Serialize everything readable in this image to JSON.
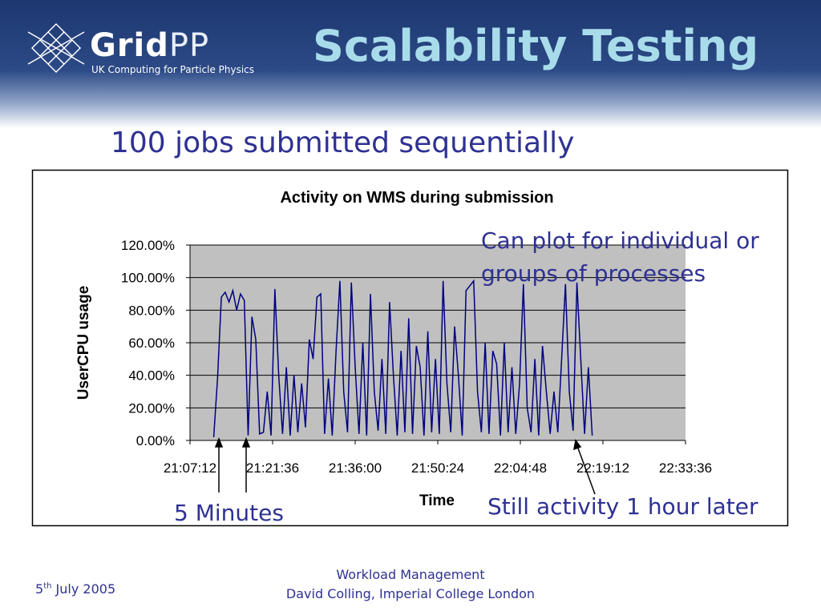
{
  "slide": {
    "logo": {
      "bold": "Grid",
      "light": "PP",
      "tagline": "UK Computing for Particle Physics"
    },
    "title": "Scalability Testing",
    "subtitle": "100 jobs submitted sequentially",
    "footer": {
      "date_day": "5",
      "date_suffix": "th",
      "date_rest": "July 2005",
      "line1": "Workload Management",
      "line2": "David Colling, Imperial College London"
    }
  },
  "chart_data": {
    "type": "line",
    "title": "Activity on WMS during submission",
    "x_label": "Time",
    "y_label": "UserCPU usage",
    "annotations": [
      "Can plot for individual or groups of processes",
      "5 Minutes",
      "Still activity 1 hour later"
    ],
    "color": "#000080",
    "grid": true,
    "xlim": [
      "21:07:12",
      "22:33:36"
    ],
    "xticks": [
      "21:07:12",
      "21:21:36",
      "21:36:00",
      "21:50:24",
      "22:04:48",
      "22:19:12",
      "22:33:36"
    ],
    "ylim": [
      0,
      120
    ],
    "yticks": [
      {
        "value": 0,
        "label": "0.00%"
      },
      {
        "value": 20,
        "label": "20.00%"
      },
      {
        "value": 40,
        "label": "40.00%"
      },
      {
        "value": 60,
        "label": "60.00%"
      },
      {
        "value": 80,
        "label": "80.00%"
      },
      {
        "value": 100,
        "label": "100.00%"
      },
      {
        "value": 120,
        "label": "120.00%"
      }
    ],
    "x": [
      "21:11:20",
      "21:12:00",
      "21:12:40",
      "21:13:20",
      "21:14:00",
      "21:14:40",
      "21:15:20",
      "21:16:00",
      "21:16:40",
      "21:17:20",
      "21:18:00",
      "21:18:40",
      "21:19:20",
      "21:20:00",
      "21:20:40",
      "21:21:20",
      "21:22:00",
      "21:22:40",
      "21:23:20",
      "21:24:00",
      "21:24:40",
      "21:25:20",
      "21:26:00",
      "21:26:40",
      "21:27:20",
      "21:28:00",
      "21:28:40",
      "21:29:20",
      "21:30:00",
      "21:30:40",
      "21:31:20",
      "21:32:00",
      "21:32:40",
      "21:33:20",
      "21:34:00",
      "21:34:40",
      "21:35:20",
      "21:36:00",
      "21:36:40",
      "21:37:20",
      "21:38:00",
      "21:38:40",
      "21:39:20",
      "21:40:00",
      "21:40:40",
      "21:41:20",
      "21:42:00",
      "21:42:40",
      "21:43:20",
      "21:44:00",
      "21:44:40",
      "21:45:20",
      "21:46:00",
      "21:46:40",
      "21:47:20",
      "21:48:00",
      "21:48:40",
      "21:49:20",
      "21:50:00",
      "21:50:40",
      "21:51:20",
      "21:52:00",
      "21:52:40",
      "21:53:20",
      "21:54:00",
      "21:54:40",
      "21:55:20",
      "21:56:00",
      "21:56:40",
      "21:57:20",
      "21:58:00",
      "21:58:40",
      "21:59:20",
      "22:00:00",
      "22:00:40",
      "22:01:20",
      "22:02:00",
      "22:02:40",
      "22:03:20",
      "22:04:00",
      "22:04:40",
      "22:05:20",
      "22:06:00",
      "22:06:40",
      "22:07:20",
      "22:08:00",
      "22:08:40",
      "22:09:20",
      "22:10:00",
      "22:10:40",
      "22:11:20",
      "22:12:00",
      "22:12:40",
      "22:13:20",
      "22:14:00",
      "22:14:40",
      "22:15:20",
      "22:16:00",
      "22:16:40",
      "22:17:20"
    ],
    "values": [
      2,
      38,
      88,
      91,
      85,
      92,
      80,
      90,
      86,
      3,
      76,
      62,
      4,
      5,
      30,
      3,
      93,
      40,
      4,
      45,
      3,
      40,
      5,
      35,
      8,
      62,
      50,
      88,
      90,
      4,
      38,
      3,
      55,
      98,
      30,
      5,
      97,
      45,
      4,
      60,
      3,
      90,
      30,
      6,
      50,
      4,
      85,
      40,
      3,
      55,
      5,
      75,
      4,
      58,
      45,
      3,
      67,
      5,
      50,
      4,
      98,
      35,
      5,
      70,
      40,
      3,
      92,
      95,
      98,
      30,
      5,
      60,
      4,
      55,
      47,
      3,
      60,
      5,
      45,
      4,
      35,
      96,
      20,
      5,
      50,
      3,
      58,
      30,
      4,
      30,
      5,
      50,
      96,
      30,
      6,
      97,
      50,
      4,
      45,
      3
    ]
  }
}
